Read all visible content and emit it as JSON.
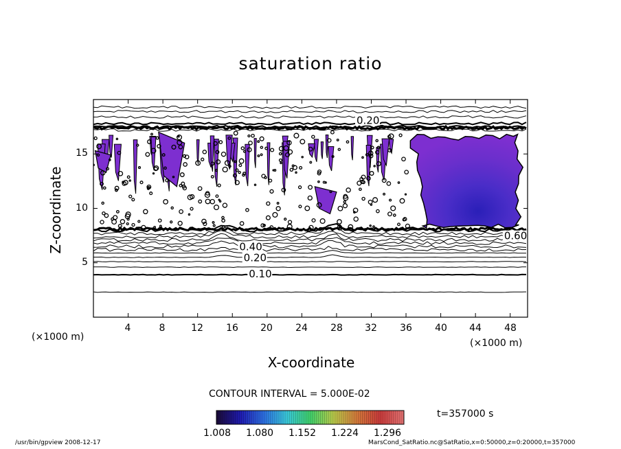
{
  "chart_data": {
    "type": "contour",
    "title": "saturation ratio",
    "xlabel": "X-coordinate",
    "ylabel": "Z-coordinate",
    "x_unit": "(×1000 m)",
    "x_unit_left": "(×1000 m)",
    "xlim": [
      0,
      50
    ],
    "ylim": [
      0,
      20
    ],
    "x_ticks": [
      "4",
      "8",
      "12",
      "16",
      "20",
      "24",
      "28",
      "32",
      "36",
      "40",
      "44",
      "48"
    ],
    "x_tick_values": [
      4,
      8,
      12,
      16,
      20,
      24,
      28,
      32,
      36,
      40,
      44,
      48
    ],
    "y_ticks": [
      "5",
      "10",
      "15"
    ],
    "y_tick_values": [
      5,
      10,
      15
    ],
    "contour_interval_text": "CONTOUR INTERVAL = 5.000E-02",
    "contour_labels": [
      {
        "text": "0.10",
        "x": 17.9,
        "z": 3.9
      },
      {
        "text": "0.20",
        "x": 17.3,
        "z": 5.4
      },
      {
        "text": "0.40",
        "x": 16.8,
        "z": 6.4
      },
      {
        "text": "0.20",
        "x": 30.3,
        "z": 18.0
      },
      {
        "text": "0.60",
        "x": 47.3,
        "z": 7.4
      }
    ],
    "horizontal_contours_z": [
      2.3,
      3.9,
      4.6,
      5.1,
      5.5,
      5.9,
      6.2,
      6.5,
      6.8,
      7.1,
      7.4,
      7.7,
      8.0,
      17.2,
      17.5,
      17.8,
      18.4,
      18.9,
      19.3
    ],
    "colorbar": {
      "min": 1.008,
      "max": 1.332,
      "tick_labels": [
        "1.008",
        "1.080",
        "1.152",
        "1.224",
        "1.296"
      ],
      "tick_values": [
        1.008,
        1.08,
        1.152,
        1.224,
        1.296
      ],
      "colors": [
        "#1a0a3a",
        "#1f1bb0",
        "#2c6ee0",
        "#39c7d8",
        "#3fcf6a",
        "#b7c94a",
        "#d27a3a",
        "#c83a3a",
        "#e07070"
      ]
    },
    "supersaturation_regions": [
      {
        "x_range": [
          36.5,
          49
        ],
        "z_range": [
          8.2,
          16.8
        ],
        "peak": 1.09
      },
      {
        "x_range": [
          0.2,
          2
        ],
        "z_range": [
          13.3,
          15.3
        ],
        "peak": 1.02
      },
      {
        "x_range": [
          7.5,
          10.5
        ],
        "z_range": [
          12,
          17
        ],
        "peak": 1.02
      },
      {
        "x_range": [
          25.5,
          28
        ],
        "z_range": [
          9.5,
          12
        ],
        "peak": 1.02
      }
    ],
    "time": "t=357000 s"
  },
  "footer": {
    "left": "/usr/bin/gpview   2008-12-17",
    "right": "MarsCond_SatRatio.nc@SatRatio,x=0:50000,z=0:20000,t=357000"
  }
}
